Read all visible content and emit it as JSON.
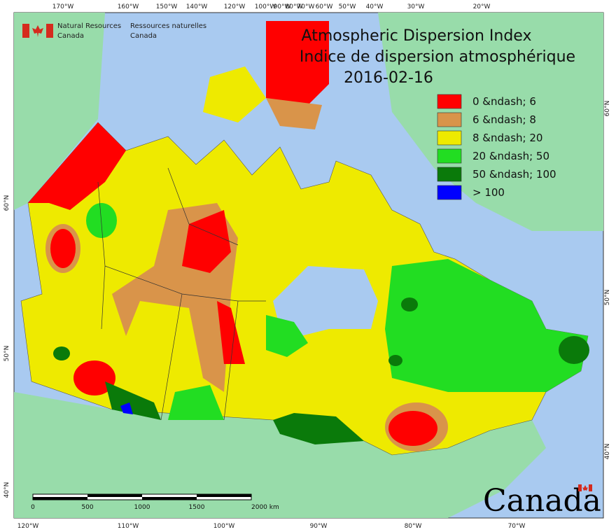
{
  "header": {
    "org_en": [
      "Natural Resources",
      "Canada"
    ],
    "org_fr": [
      "Ressources naturelles",
      "Canada"
    ]
  },
  "title": [
    "Atmospheric Dispersion Index",
    "Indice de dispersion atmosphérique",
    "2016-02-16"
  ],
  "legend": [
    {
      "label": "0 &ndash; 6",
      "color": "#ff0000"
    },
    {
      "label": "6 &ndash; 8",
      "color": "#d9944a"
    },
    {
      "label": "8 &ndash; 20",
      "color": "#eeea00"
    },
    {
      "label": "20 &ndash; 50",
      "color": "#22dd22"
    },
    {
      "label": "50 &ndash; 100",
      "color": "#0a7a0a"
    },
    {
      "label": "> 100",
      "color": "#0000ff"
    }
  ],
  "graticule": {
    "top": [
      "170°W",
      "160°W",
      "150°W",
      "140°W",
      "120°W",
      "100°W",
      "90°W",
      "80°W",
      "70°W",
      "60°W",
      "50°W",
      "40°W",
      "30°W",
      "20°W"
    ],
    "bottom": [
      "120°W",
      "110°W",
      "100°W",
      "90°W",
      "80°W",
      "70°W"
    ],
    "left": [
      "60°N",
      "50°N",
      "40°N"
    ],
    "right": [
      "60°N",
      "50°N",
      "40°N"
    ]
  },
  "scale_bar": [
    "0",
    "500",
    "1000",
    "1500",
    "2000 km"
  ],
  "wordmark": "Canada"
}
